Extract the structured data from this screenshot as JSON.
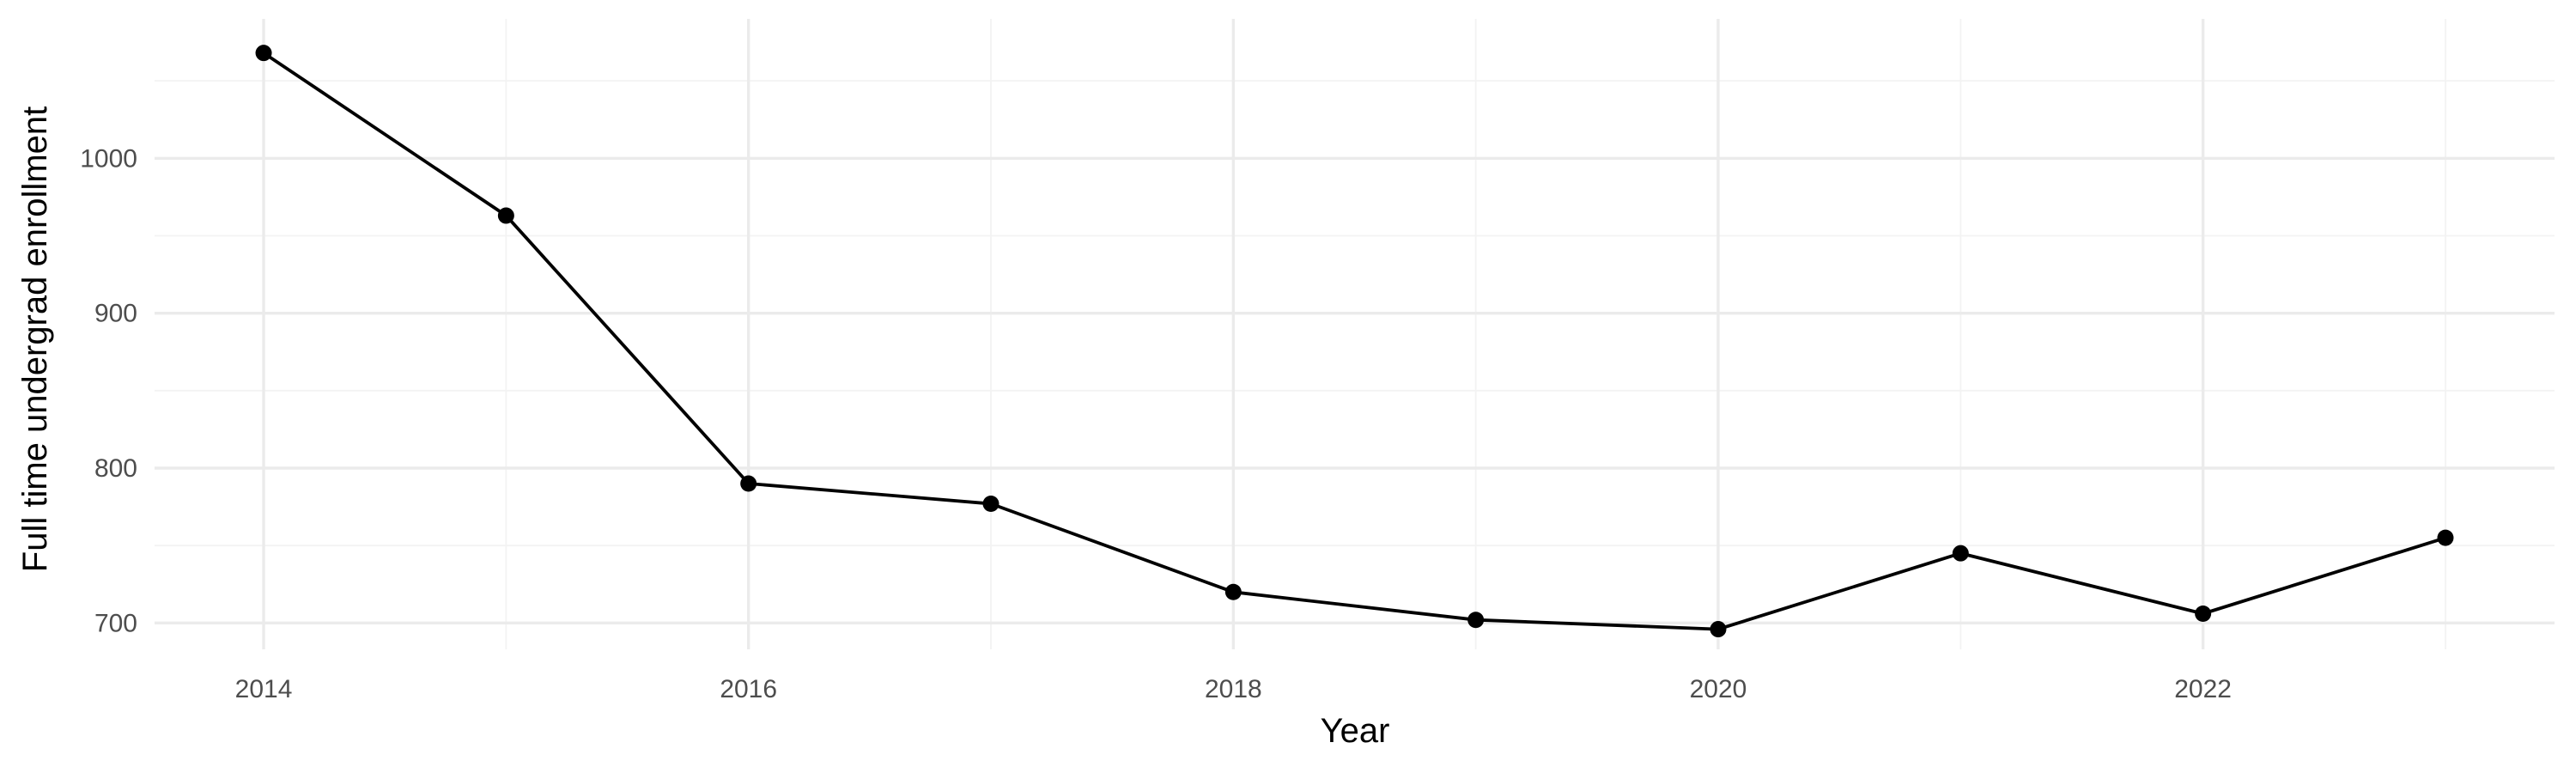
{
  "chart_data": {
    "type": "line",
    "title": "",
    "xlabel": "Year",
    "ylabel": "Full time undergrad enrollment",
    "x": [
      2014,
      2015,
      2016,
      2017,
      2018,
      2019,
      2020,
      2021,
      2022,
      2023
    ],
    "series": [
      {
        "values": [
          1068,
          963,
          790,
          777,
          720,
          702,
          696,
          745,
          706,
          755
        ],
        "color": "#000000"
      }
    ],
    "xlim": [
      2013.55,
      2023.45
    ],
    "ylim": [
      683,
      1090
    ],
    "x_ticks": [
      2014,
      2016,
      2018,
      2020,
      2022
    ],
    "x_tick_labels": [
      "2014",
      "2016",
      "2018",
      "2020",
      "2022"
    ],
    "x_minor_ticks": [
      2015,
      2017,
      2019,
      2021,
      2023
    ],
    "y_ticks": [
      700,
      800,
      900,
      1000
    ],
    "y_tick_labels": [
      "700",
      "800",
      "900",
      "1000"
    ],
    "y_minor_ticks": [
      750,
      850,
      950,
      1050
    ],
    "grid": true,
    "legend": "none",
    "background": "#ffffff",
    "grid_color": "#ebebeb"
  }
}
